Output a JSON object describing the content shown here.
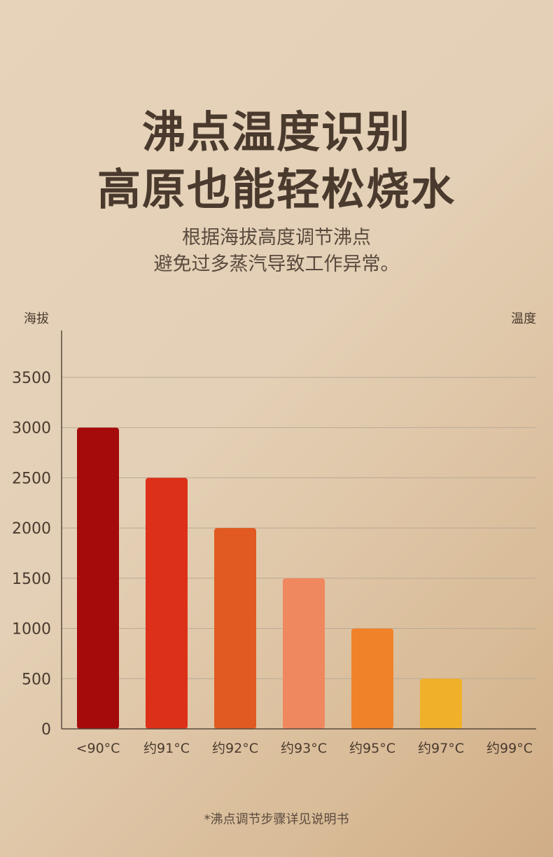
{
  "headline": {
    "line1": "沸点温度识别",
    "line2": "高原也能轻松烧水"
  },
  "subtitle": {
    "line1": "根据海拔高度调节沸点",
    "line2": "避免过多蒸汽导致工作异常。"
  },
  "footnote": "*沸点调节步骤详见说明书",
  "chart_data": {
    "type": "bar",
    "ylabel": "海拔",
    "xlabel": "温度",
    "categories": [
      "<90°C",
      "约91°C",
      "约92°C",
      "约93°C",
      "约95°C",
      "约97°C",
      "约99°C"
    ],
    "values": [
      3000,
      2500,
      2000,
      1500,
      1000,
      500,
      0
    ],
    "bar_colors": [
      "#a50b0b",
      "#dc3018",
      "#e15a21",
      "#f0885f",
      "#f0822a",
      "#f0b02a",
      "#f0b02a"
    ],
    "ylim": [
      0,
      3500
    ],
    "yticks": [
      0,
      500,
      1000,
      1500,
      2000,
      2500,
      3000,
      3500
    ],
    "grid": true,
    "grid_color": "#b9a996",
    "axis_color": "#5a4a3e",
    "tick_label_color": "#4a3a2e"
  }
}
